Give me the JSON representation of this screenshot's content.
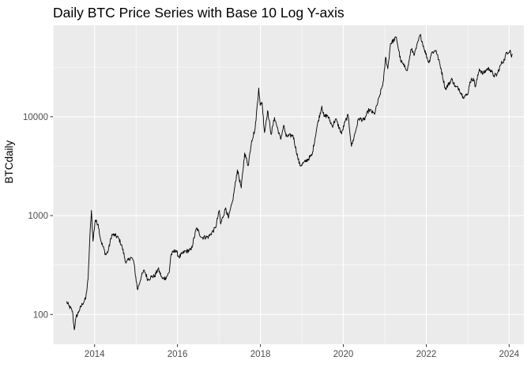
{
  "chart_data": {
    "type": "line",
    "title": "Daily BTC Price Series with Base 10 Log Y-axis",
    "xlabel": "",
    "ylabel": "BTCdaily",
    "y_scale": "log10",
    "xlim": [
      "2012-12-30",
      "2024-05-10"
    ],
    "ylim": [
      50,
      84000
    ],
    "x_ticks": [
      "2014",
      "2016",
      "2018",
      "2020",
      "2022",
      "2024"
    ],
    "y_ticks": [
      "100",
      "1000",
      "10000"
    ],
    "grid": true,
    "series": [
      {
        "color": "#000000",
        "points": [
          [
            "2013-04-28",
            135
          ],
          [
            "2013-05-20",
            122
          ],
          [
            "2013-06-20",
            108
          ],
          [
            "2013-07-06",
            70
          ],
          [
            "2013-07-20",
            92
          ],
          [
            "2013-08-15",
            108
          ],
          [
            "2013-09-15",
            128
          ],
          [
            "2013-10-15",
            145
          ],
          [
            "2013-11-05",
            230
          ],
          [
            "2013-11-20",
            600
          ],
          [
            "2013-12-04",
            1130
          ],
          [
            "2013-12-18",
            550
          ],
          [
            "2014-01-06",
            900
          ],
          [
            "2014-02-01",
            820
          ],
          [
            "2014-02-25",
            560
          ],
          [
            "2014-04-10",
            400
          ],
          [
            "2014-05-01",
            440
          ],
          [
            "2014-06-01",
            640
          ],
          [
            "2014-07-01",
            630
          ],
          [
            "2014-08-01",
            590
          ],
          [
            "2014-09-01",
            480
          ],
          [
            "2014-10-05",
            330
          ],
          [
            "2014-11-15",
            380
          ],
          [
            "2014-12-10",
            350
          ],
          [
            "2015-01-14",
            178
          ],
          [
            "2015-02-15",
            240
          ],
          [
            "2015-03-15",
            280
          ],
          [
            "2015-04-15",
            225
          ],
          [
            "2015-05-15",
            240
          ],
          [
            "2015-06-15",
            245
          ],
          [
            "2015-07-15",
            290
          ],
          [
            "2015-08-20",
            230
          ],
          [
            "2015-09-20",
            235
          ],
          [
            "2015-10-20",
            265
          ],
          [
            "2015-11-04",
            400
          ],
          [
            "2015-12-15",
            450
          ],
          [
            "2016-01-15",
            380
          ],
          [
            "2016-03-01",
            430
          ],
          [
            "2016-05-01",
            450
          ],
          [
            "2016-06-17",
            750
          ],
          [
            "2016-08-01",
            600
          ],
          [
            "2016-10-01",
            610
          ],
          [
            "2016-12-01",
            750
          ],
          [
            "2017-01-04",
            1130
          ],
          [
            "2017-01-15",
            820
          ],
          [
            "2017-03-01",
            1200
          ],
          [
            "2017-03-25",
            940
          ],
          [
            "2017-05-01",
            1400
          ],
          [
            "2017-06-12",
            2900
          ],
          [
            "2017-07-16",
            1900
          ],
          [
            "2017-08-15",
            4300
          ],
          [
            "2017-09-15",
            3200
          ],
          [
            "2017-10-15",
            5700
          ],
          [
            "2017-11-15",
            7500
          ],
          [
            "2017-12-17",
            19500
          ],
          [
            "2017-12-30",
            13000
          ],
          [
            "2018-01-15",
            14000
          ],
          [
            "2018-02-06",
            6900
          ],
          [
            "2018-03-05",
            11500
          ],
          [
            "2018-04-06",
            6600
          ],
          [
            "2018-05-05",
            9800
          ],
          [
            "2018-06-28",
            5900
          ],
          [
            "2018-07-25",
            8200
          ],
          [
            "2018-08-15",
            6300
          ],
          [
            "2018-10-15",
            6500
          ],
          [
            "2018-11-25",
            3900
          ],
          [
            "2018-12-15",
            3200
          ],
          [
            "2019-02-01",
            3500
          ],
          [
            "2019-04-01",
            4100
          ],
          [
            "2019-05-15",
            8000
          ],
          [
            "2019-06-26",
            12800
          ],
          [
            "2019-07-15",
            10000
          ],
          [
            "2019-08-15",
            10300
          ],
          [
            "2019-09-26",
            8000
          ],
          [
            "2019-10-26",
            9500
          ],
          [
            "2019-12-17",
            6700
          ],
          [
            "2020-01-15",
            8800
          ],
          [
            "2020-02-13",
            10300
          ],
          [
            "2020-03-13",
            5000
          ],
          [
            "2020-04-15",
            6900
          ],
          [
            "2020-05-15",
            9600
          ],
          [
            "2020-07-01",
            9200
          ],
          [
            "2020-08-15",
            11800
          ],
          [
            "2020-10-01",
            10600
          ],
          [
            "2020-11-15",
            16000
          ],
          [
            "2020-12-20",
            23000
          ],
          [
            "2021-01-08",
            40000
          ],
          [
            "2021-01-27",
            30500
          ],
          [
            "2021-02-20",
            55000
          ],
          [
            "2021-04-13",
            63000
          ],
          [
            "2021-05-20",
            37000
          ],
          [
            "2021-06-22",
            32000
          ],
          [
            "2021-07-20",
            30000
          ],
          [
            "2021-08-20",
            48000
          ],
          [
            "2021-09-20",
            43000
          ],
          [
            "2021-11-09",
            67500
          ],
          [
            "2021-12-15",
            48000
          ],
          [
            "2022-01-24",
            35000
          ],
          [
            "2022-02-15",
            44000
          ],
          [
            "2022-03-28",
            47000
          ],
          [
            "2022-05-10",
            31000
          ],
          [
            "2022-06-18",
            19000
          ],
          [
            "2022-08-15",
            24000
          ],
          [
            "2022-09-15",
            20000
          ],
          [
            "2022-10-15",
            19300
          ],
          [
            "2022-11-20",
            16000
          ],
          [
            "2022-12-31",
            16600
          ],
          [
            "2023-01-20",
            22500
          ],
          [
            "2023-02-20",
            24500
          ],
          [
            "2023-03-10",
            20000
          ],
          [
            "2023-04-14",
            30500
          ],
          [
            "2023-05-15",
            27000
          ],
          [
            "2023-06-23",
            30500
          ],
          [
            "2023-07-15",
            30300
          ],
          [
            "2023-08-20",
            26000
          ],
          [
            "2023-09-15",
            26500
          ],
          [
            "2023-10-24",
            34500
          ],
          [
            "2023-11-20",
            37500
          ],
          [
            "2023-12-08",
            44000
          ],
          [
            "2024-01-11",
            47000
          ],
          [
            "2024-01-22",
            40000
          ],
          [
            "2024-01-31",
            43000
          ]
        ]
      }
    ]
  }
}
